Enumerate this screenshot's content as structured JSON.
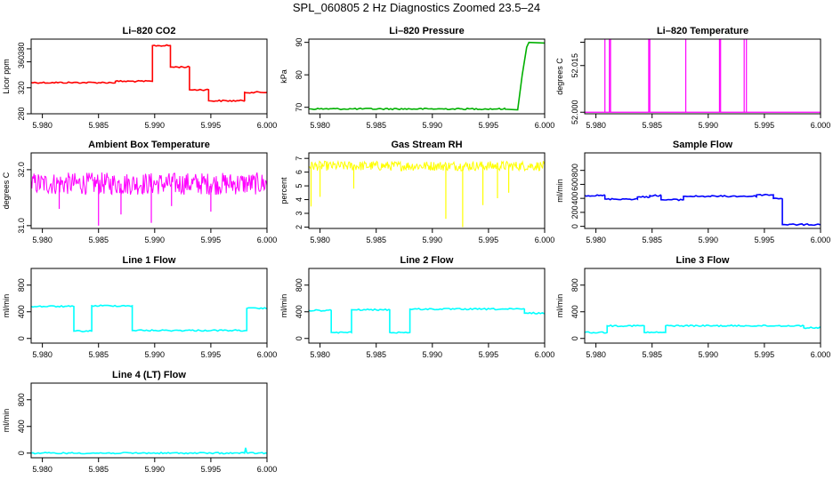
{
  "page": {
    "title": "SPL_060805  2 Hz Diagnostics Zoomed 23.5–24"
  },
  "chart_data": [
    {
      "type": "line",
      "title": "Li–820 CO2",
      "ylabel": "Licor ppm",
      "color": "#ff0000",
      "xlim": [
        5.979,
        6.0
      ],
      "ylim": [
        280,
        395
      ],
      "x_ticks": [
        "5.980",
        "5.985",
        "5.990",
        "5.995",
        "6.000"
      ],
      "y_ticks": [
        "280",
        "320",
        "360",
        "380"
      ],
      "series": [
        {
          "step": true,
          "x": [
            5.979,
            5.9865,
            5.9898,
            5.9914,
            5.9931,
            5.9948,
            5.998,
            6.0
          ],
          "values": [
            328,
            330,
            385,
            352,
            317,
            300,
            313,
            313
          ]
        }
      ]
    },
    {
      "type": "line",
      "title": "Li–820 Pressure",
      "ylabel": "kPa",
      "color": "#00b000",
      "xlim": [
        5.979,
        6.0
      ],
      "ylim": [
        68,
        91
      ],
      "x_ticks": [
        "5.980",
        "5.985",
        "5.990",
        "5.995",
        "6.000"
      ],
      "y_ticks": [
        "70",
        "80",
        "90"
      ],
      "series": [
        {
          "step": false,
          "x": [
            5.979,
            5.9965,
            5.9976,
            5.998,
            5.9984,
            5.9986,
            6.0
          ],
          "values": [
            69.5,
            69.4,
            69.2,
            80,
            88.5,
            90,
            89.8
          ]
        }
      ]
    },
    {
      "type": "line",
      "title": "Li–820 Temperature",
      "ylabel": "degrees C",
      "color": "#ff00ff",
      "xlim": [
        5.979,
        6.0
      ],
      "ylim": [
        51.9995,
        52.0235
      ],
      "x_ticks": [
        "5.980",
        "5.985",
        "5.990",
        "5.995",
        "6.000"
      ],
      "y_ticks": [
        "52.000",
        "52.015",
        ""
      ],
      "baseline": 52.0,
      "high": 52.0235,
      "spikes": [
        5.9808,
        5.9812,
        5.9813,
        5.9847,
        5.9848,
        5.988,
        5.991,
        5.9911,
        5.9932,
        5.9934
      ],
      "mid_spike": {
        "x": 5.9911,
        "value": 52.01
      }
    },
    {
      "type": "line",
      "title": "Ambient Box Temperature",
      "ylabel": "degrees C",
      "color": "#ff00ff",
      "xlim": [
        5.979,
        6.0
      ],
      "ylim": [
        30.95,
        32.3
      ],
      "x_ticks": [
        "5.980",
        "5.985",
        "5.990",
        "5.995",
        "6.000"
      ],
      "y_ticks": [
        "31.0",
        "32.0"
      ],
      "noise": {
        "center": 31.75,
        "amplitude": 0.2,
        "dips": [
          [
            5.9815,
            31.3
          ],
          [
            5.985,
            31.0
          ],
          [
            5.987,
            31.2
          ],
          [
            5.9897,
            31.05
          ],
          [
            5.9915,
            31.35
          ],
          [
            5.995,
            31.25
          ]
        ]
      }
    },
    {
      "type": "line",
      "title": "Gas Stream RH",
      "ylabel": "percent",
      "color": "#ffff00",
      "xlim": [
        5.979,
        6.0
      ],
      "ylim": [
        1.9,
        7.4
      ],
      "x_ticks": [
        "5.980",
        "5.985",
        "5.990",
        "5.995",
        "6.000"
      ],
      "y_ticks": [
        "2",
        "3",
        "4",
        "5",
        "6",
        "7"
      ],
      "noise": {
        "center": 6.45,
        "amplitude": 0.35,
        "dips": [
          [
            5.9792,
            3.5
          ],
          [
            5.98,
            4.2
          ],
          [
            5.983,
            4.8
          ],
          [
            5.9912,
            2.6
          ],
          [
            5.9927,
            2.0
          ],
          [
            5.9945,
            3.6
          ],
          [
            5.9958,
            4.1
          ],
          [
            5.9968,
            4.5
          ]
        ]
      }
    },
    {
      "type": "line",
      "title": "Sample Flow",
      "ylabel": "ml/min",
      "color": "#0000ff",
      "xlim": [
        5.979,
        6.0
      ],
      "ylim": [
        -30,
        1050
      ],
      "x_ticks": [
        "5.980",
        "5.985",
        "5.990",
        "5.995",
        "6.000"
      ],
      "y_ticks": [
        "0",
        "200",
        "400",
        "600",
        "800"
      ],
      "series": [
        {
          "step": true,
          "x": [
            5.979,
            5.9808,
            5.9837,
            5.9848,
            5.9858,
            5.9878,
            5.9943,
            5.9958,
            5.9966,
            6.0
          ],
          "values": [
            440,
            390,
            420,
            440,
            380,
            430,
            450,
            400,
            25,
            20
          ]
        }
      ]
    },
    {
      "type": "line",
      "title": "Line 1 Flow",
      "ylabel": "ml/min",
      "color": "#00ffff",
      "xlim": [
        5.979,
        6.0
      ],
      "ylim": [
        -70,
        1050
      ],
      "x_ticks": [
        "5.980",
        "5.985",
        "5.990",
        "5.995",
        "6.000"
      ],
      "y_ticks": [
        "0",
        "400",
        "800"
      ],
      "series": [
        {
          "step": true,
          "x": [
            5.979,
            5.9828,
            5.9844,
            5.988,
            5.9982,
            6.0
          ],
          "values": [
            480,
            110,
            490,
            120,
            450,
            450
          ]
        }
      ]
    },
    {
      "type": "line",
      "title": "Line 2 Flow",
      "ylabel": "ml/min",
      "color": "#00ffff",
      "xlim": [
        5.979,
        6.0
      ],
      "ylim": [
        -70,
        1050
      ],
      "x_ticks": [
        "5.980",
        "5.985",
        "5.990",
        "5.995",
        "6.000"
      ],
      "y_ticks": [
        "0",
        "400",
        "800"
      ],
      "series": [
        {
          "step": true,
          "x": [
            5.979,
            5.981,
            5.9828,
            5.9862,
            5.988,
            5.9982,
            6.0
          ],
          "values": [
            420,
            90,
            430,
            90,
            440,
            380,
            380
          ]
        }
      ]
    },
    {
      "type": "line",
      "title": "Line 3 Flow",
      "ylabel": "ml/min",
      "color": "#00ffff",
      "xlim": [
        5.979,
        6.0
      ],
      "ylim": [
        -70,
        1050
      ],
      "x_ticks": [
        "5.980",
        "5.985",
        "5.990",
        "5.995",
        "6.000"
      ],
      "y_ticks": [
        "0",
        "400",
        "800"
      ],
      "series": [
        {
          "step": true,
          "x": [
            5.979,
            5.981,
            5.9843,
            5.9862,
            5.9985,
            6.0
          ],
          "values": [
            90,
            190,
            90,
            190,
            160,
            160
          ]
        }
      ]
    },
    {
      "type": "line",
      "title": "Line 4 (LT) Flow",
      "ylabel": "ml/min",
      "color": "#00ffff",
      "xlim": [
        5.979,
        6.0
      ],
      "ylim": [
        -70,
        1050
      ],
      "x_ticks": [
        "5.980",
        "5.985",
        "5.990",
        "5.995",
        "6.000"
      ],
      "y_ticks": [
        "0",
        "400",
        "800"
      ],
      "series": [
        {
          "step": false,
          "x": [
            5.979,
            5.998,
            5.9981,
            5.9982,
            5.9983,
            6.0
          ],
          "values": [
            0,
            0,
            80,
            5,
            0,
            0
          ]
        }
      ]
    }
  ]
}
